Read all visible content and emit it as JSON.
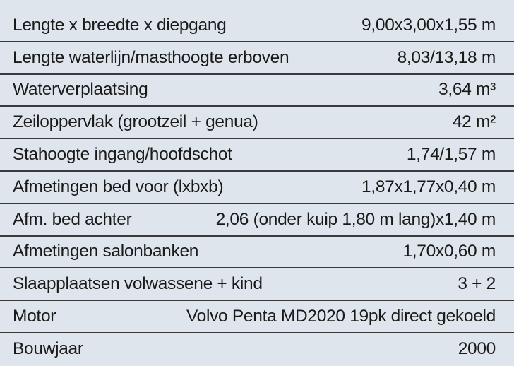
{
  "table": {
    "rows": [
      [
        "Lengte x breedte x diepgang",
        "9,00x3,00x1,55 m"
      ],
      [
        "Lengte waterlijn/masthoogte erboven",
        "8,03/13,18 m"
      ],
      [
        "Waterverplaatsing",
        "3,64 m³"
      ],
      [
        "Zeiloppervlak (grootzeil + genua)",
        "42 m²"
      ],
      [
        "Stahoogte ingang/hoofdschot",
        "1,74/1,57 m"
      ],
      [
        "Afmetingen bed voor (lxbxb)",
        "1,87x1,77x0,40 m"
      ],
      [
        "Afm. bed achter",
        "2,06 (onder kuip 1,80 m lang)x1,40 m"
      ],
      [
        "Afmetingen salonbanken",
        "1,70x0,60 m"
      ],
      [
        "Slaapplaatsen volwassene + kind",
        "3 + 2"
      ],
      [
        "Motor",
        "Volvo Penta MD2020 19pk direct gekoeld"
      ],
      [
        "Bouwjaar",
        "2000"
      ]
    ]
  }
}
